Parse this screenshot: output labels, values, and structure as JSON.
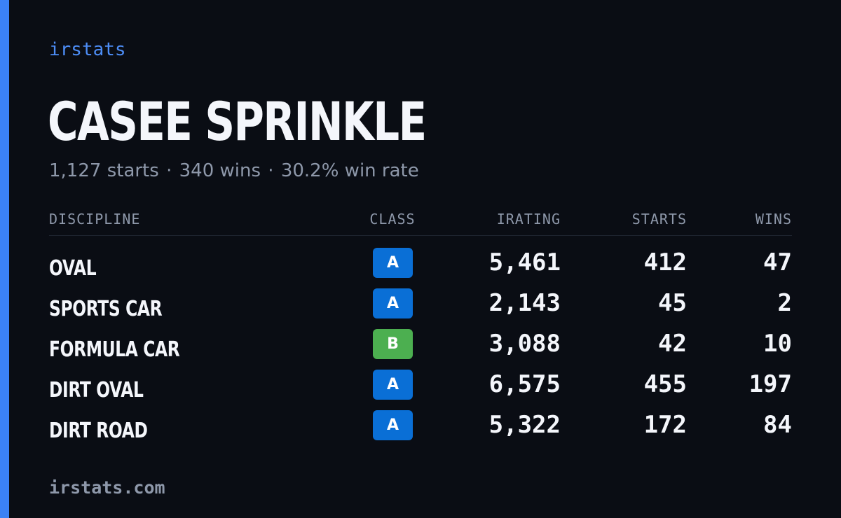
{
  "brand": "irstats",
  "player": {
    "name": "CASEE SPRINKLE",
    "starts_text": "1,127 starts",
    "wins_text": "340 wins",
    "winrate_text": "30.2% win rate",
    "separator": "·"
  },
  "table": {
    "headers": {
      "discipline": "DISCIPLINE",
      "class": "CLASS",
      "irating": "IRATING",
      "starts": "STARTS",
      "wins": "WINS"
    },
    "rows": [
      {
        "discipline": "OVAL",
        "class": "A",
        "irating": "5,461",
        "starts": "412",
        "wins": "47"
      },
      {
        "discipline": "SPORTS CAR",
        "class": "A",
        "irating": "2,143",
        "starts": "45",
        "wins": "2"
      },
      {
        "discipline": "FORMULA CAR",
        "class": "B",
        "irating": "3,088",
        "starts": "42",
        "wins": "10"
      },
      {
        "discipline": "DIRT OVAL",
        "class": "A",
        "irating": "6,575",
        "starts": "455",
        "wins": "197"
      },
      {
        "discipline": "DIRT ROAD",
        "class": "A",
        "irating": "5,322",
        "starts": "172",
        "wins": "84"
      }
    ]
  },
  "class_colors": {
    "A": "#0a6fd6",
    "B": "#4caf50"
  },
  "colors": {
    "accent": "#3b82f6",
    "background": "#0a0d14"
  },
  "footer": "irstats.com"
}
